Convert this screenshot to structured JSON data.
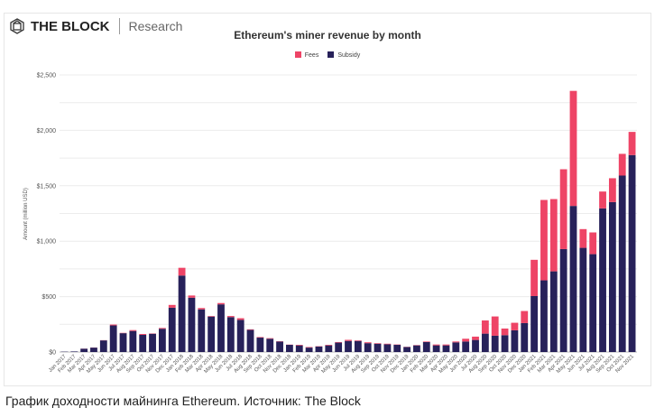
{
  "brand": {
    "name": "THE BLOCK",
    "sub": "Research"
  },
  "caption": "График доходности майнинга Ethereum. Источник: The Block",
  "chart_data": {
    "type": "bar",
    "stacked": true,
    "title": "Ethereum's miner revenue by month",
    "ylabel": "Amount (million USD)",
    "xlabel": "",
    "ylim": [
      0,
      2500
    ],
    "yticks": [
      0,
      500,
      1000,
      1500,
      2000,
      2500
    ],
    "ytick_labels": [
      "$0",
      "$500",
      "$1,000",
      "$1,500",
      "$2,000",
      "$2,500"
    ],
    "grid": true,
    "legend_position": "top-center",
    "colors": {
      "Fees": "#ee4466",
      "Subsidy": "#27215a"
    },
    "categories": [
      "Jan 2017",
      "Feb 2017",
      "Mar 2017",
      "Apr 2017",
      "May 2017",
      "Jun 2017",
      "Jul 2017",
      "Aug 2017",
      "Sep 2017",
      "Oct 2017",
      "Nov 2017",
      "Dec 2017",
      "Jan 2018",
      "Feb 2018",
      "Mar 2018",
      "Apr 2018",
      "May 2018",
      "Jun 2018",
      "Jul 2018",
      "Aug 2018",
      "Sep 2018",
      "Oct 2018",
      "Nov 2018",
      "Dec 2018",
      "Jan 2019",
      "Feb 2019",
      "Mar 2019",
      "Apr 2019",
      "May 2019",
      "Jun 2019",
      "Jul 2019",
      "Aug 2019",
      "Sep 2019",
      "Oct 2019",
      "Nov 2019",
      "Dec 2019",
      "Jan 2020",
      "Feb 2020",
      "Mar 2020",
      "Apr 2020",
      "May 2020",
      "Jun 2020",
      "Jul 2020",
      "Aug 2020",
      "Sep 2020",
      "Oct 2020",
      "Nov 2020",
      "Dec 2020",
      "Jan 2021",
      "Feb 2021",
      "Mar 2021",
      "Apr 2021",
      "May 2021",
      "Jun 2021",
      "Jul 2021",
      "Aug 2021",
      "Sep 2021",
      "Oct 2021",
      "Nov 2021"
    ],
    "series": [
      {
        "name": "Subsidy",
        "values": [
          3,
          5,
          30,
          40,
          105,
          240,
          170,
          190,
          155,
          165,
          210,
          400,
          690,
          490,
          385,
          320,
          430,
          315,
          290,
          200,
          130,
          120,
          95,
          65,
          60,
          40,
          50,
          60,
          85,
          100,
          100,
          80,
          75,
          70,
          65,
          45,
          60,
          90,
          60,
          60,
          87,
          95,
          109,
          166,
          147,
          152,
          196,
          261,
          505,
          647,
          728,
          929,
          1318,
          940,
          883,
          1296,
          1353,
          1592,
          1777
        ]
      },
      {
        "name": "Fees",
        "values": [
          0,
          0,
          1,
          1,
          2,
          8,
          3,
          8,
          8,
          3,
          7,
          25,
          70,
          20,
          12,
          5,
          12,
          10,
          15,
          5,
          5,
          5,
          3,
          2,
          5,
          5,
          3,
          5,
          5,
          10,
          5,
          8,
          5,
          5,
          3,
          2,
          3,
          5,
          8,
          8,
          8,
          25,
          30,
          119,
          174,
          60,
          68,
          109,
          327,
          725,
          652,
          720,
          1038,
          169,
          196,
          152,
          215,
          196,
          209
        ]
      }
    ]
  }
}
